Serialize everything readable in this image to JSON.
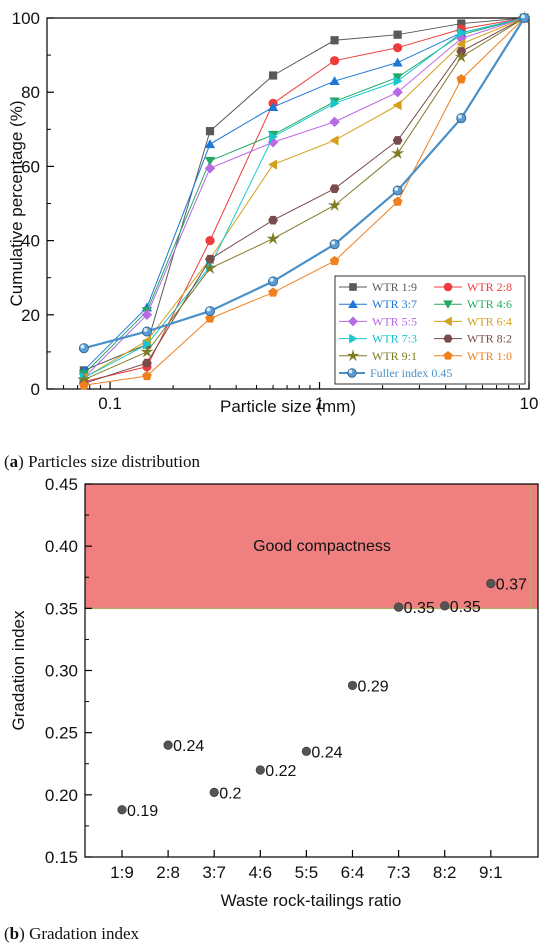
{
  "captions": {
    "a_letter": "a",
    "a_text": "Particles size distribution",
    "b_letter": "b",
    "b_text": "Gradation index"
  },
  "chart_data": [
    {
      "type": "line",
      "xlabel": "Particle size (mm)",
      "ylabel": "Cumulative percentage (%)",
      "xscale": "log",
      "xlim": [
        0.05,
        10
      ],
      "ylim": [
        0,
        100
      ],
      "xticks": [
        {
          "value": 0.1,
          "label": "0.1"
        },
        {
          "value": 1,
          "label": "1"
        },
        {
          "value": 10,
          "label": "10"
        }
      ],
      "yticks": [
        0,
        20,
        40,
        60,
        80,
        100
      ],
      "legend_position": "bottom-right",
      "x": [
        0.075,
        0.15,
        0.3,
        0.6,
        1.18,
        2.36,
        4.75,
        9.5
      ],
      "series": [
        {
          "name": "WTR 1:9",
          "color": "#595959",
          "marker": "square",
          "values": [
            5,
            12,
            69.5,
            84.5,
            94,
            95.5,
            98.5,
            100
          ]
        },
        {
          "name": "WTR 2:8",
          "color": "#ee3b3b",
          "marker": "circle",
          "values": [
            2,
            6,
            40,
            77,
            88.5,
            92,
            97,
            100
          ]
        },
        {
          "name": "WTR 3:7",
          "color": "#1f77d6",
          "marker": "triangle-up",
          "values": [
            5,
            22,
            66,
            76,
            83,
            88,
            96,
            100
          ]
        },
        {
          "name": "WTR 4:6",
          "color": "#23a963",
          "marker": "triangle-down",
          "values": [
            4,
            21,
            61.5,
            68.5,
            77.5,
            84,
            95.5,
            100
          ]
        },
        {
          "name": "WTR 5:5",
          "color": "#b968e6",
          "marker": "diamond",
          "values": [
            3,
            20,
            59.5,
            66.5,
            72,
            80,
            94.5,
            100
          ]
        },
        {
          "name": "WTR 6:4",
          "color": "#d4a017",
          "marker": "triangle-left",
          "values": [
            3,
            13,
            35,
            60.5,
            67,
            76.5,
            93,
            100
          ]
        },
        {
          "name": "WTR 7:3",
          "color": "#17c7cf",
          "marker": "triangle-right",
          "values": [
            3,
            12,
            33,
            68,
            77,
            83,
            96,
            100
          ]
        },
        {
          "name": "WTR 8:2",
          "color": "#7a4b4b",
          "marker": "hexagon",
          "values": [
            1.5,
            7,
            35,
            45.5,
            54,
            67,
            91,
            100
          ]
        },
        {
          "name": "WTR 9:1",
          "color": "#7f7a24",
          "marker": "star",
          "values": [
            2.5,
            10,
            32.5,
            40.5,
            49.5,
            63.5,
            89.5,
            100
          ]
        },
        {
          "name": "WTR 1:0",
          "color": "#f07f1d",
          "marker": "pentagon",
          "values": [
            1,
            3.5,
            19,
            26,
            34.5,
            50.5,
            83.5,
            100
          ]
        },
        {
          "name": "Fuller index 0.45",
          "color": "#4a90c8",
          "marker": "sphere",
          "values": [
            11,
            15.5,
            21,
            29,
            39,
            53.5,
            73,
            100
          ]
        }
      ]
    },
    {
      "type": "scatter",
      "xlabel": "Waste rock-tailings ratio",
      "ylabel": "Gradation index",
      "categories": [
        "1:9",
        "2:8",
        "3:7",
        "4:6",
        "5:5",
        "6:4",
        "7:3",
        "8:2",
        "9:1"
      ],
      "values": [
        0.188,
        0.24,
        0.202,
        0.22,
        0.235,
        0.288,
        0.351,
        0.352,
        0.37
      ],
      "data_labels": [
        "0.19",
        "0.24",
        "0.2",
        "0.22",
        "0.24",
        "0.29",
        "0.35",
        "0.35",
        "0.37"
      ],
      "ylim": [
        0.15,
        0.45
      ],
      "yticks": [
        "0.15",
        "0.20",
        "0.25",
        "0.30",
        "0.35",
        "0.40",
        "0.45"
      ],
      "region": {
        "label": "Good compactness",
        "y_from": 0.35,
        "y_to": 0.45,
        "color": "#f08080"
      },
      "marker_color": "#555555"
    }
  ]
}
